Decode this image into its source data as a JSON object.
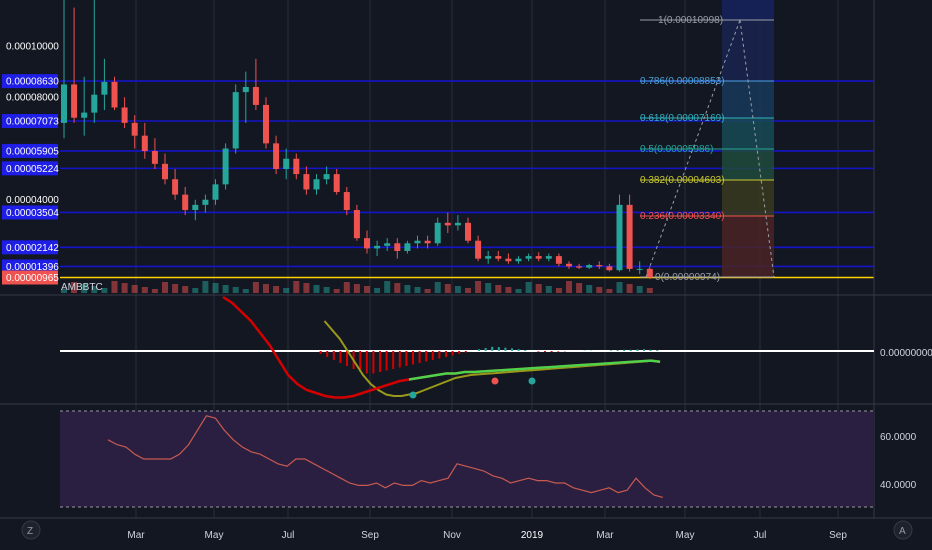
{
  "symbol": "AMBBTC",
  "corner": {
    "left": "Z",
    "right": "A"
  },
  "colors": {
    "background": "#131722",
    "grid": "#2a2e39",
    "up": "#26a69a",
    "down": "#ef5350",
    "level_line": "#1414c8",
    "level_label_bg": "#1e1ee6",
    "current_line": "#ffd400",
    "current_label_bg": "#ef5350",
    "macd_red": "#d40000",
    "macd_olive": "#9a9a1a",
    "macd_green": "#4cd44c",
    "rsi_line": "#c85a50",
    "rsi_band": "#2a1f40",
    "zero_line": "#ffffff"
  },
  "price_axis": {
    "labels": [
      "0.00010000",
      "0.00008630",
      "0.00008000",
      "0.00007073",
      "0.00005905",
      "0.00005224",
      "0.00004000",
      "0.00003504",
      "0.00002142",
      "0.00001396",
      "0.00000965"
    ],
    "highlighted": [
      "0.00008630",
      "0.00007073",
      "0.00005905",
      "0.00005224",
      "0.00003504",
      "0.00002142",
      "0.00001396"
    ],
    "current": "0.00000965"
  },
  "chart_data": [
    {
      "type": "candlestick",
      "symbol": "AMBBTC",
      "x_ticks": [
        "Mar",
        "May",
        "Jul",
        "Sep",
        "Nov",
        "2019",
        "Mar",
        "May",
        "Jul",
        "Sep"
      ],
      "ylim": [
        6.3e-06,
        0.0001225
      ],
      "horizontal_levels": [
        8.63e-05,
        7.073e-05,
        5.905e-05,
        5.224e-05,
        3.504e-05,
        2.142e-05,
        1.396e-05
      ],
      "current_price": 9.65e-06,
      "ohlc": [
        [
          7e-05,
          0.00012,
          6.4e-05,
          8.5e-05
        ],
        [
          8.5e-05,
          0.000115,
          7e-05,
          7.2e-05
        ],
        [
          7.2e-05,
          8.8e-05,
          6.5e-05,
          7.4e-05
        ],
        [
          7.4e-05,
          0.000125,
          7e-05,
          8.1e-05
        ],
        [
          8.1e-05,
          9.5e-05,
          7.5e-05,
          8.6e-05
        ],
        [
          8.6e-05,
          8.8e-05,
          7.5e-05,
          7.6e-05
        ],
        [
          7.6e-05,
          8e-05,
          6.8e-05,
          7e-05
        ],
        [
          7e-05,
          7.3e-05,
          6e-05,
          6.5e-05
        ],
        [
          6.5e-05,
          7e-05,
          5.6e-05,
          5.9e-05
        ],
        [
          5.9e-05,
          6.4e-05,
          5.2e-05,
          5.4e-05
        ],
        [
          5.4e-05,
          5.8e-05,
          4.6e-05,
          4.8e-05
        ],
        [
          4.8e-05,
          5.2e-05,
          4e-05,
          4.2e-05
        ],
        [
          4.2e-05,
          4.5e-05,
          3.4e-05,
          3.6e-05
        ],
        [
          3.6e-05,
          4e-05,
          3.2e-05,
          3.8e-05
        ],
        [
          3.8e-05,
          4.2e-05,
          3.5e-05,
          4e-05
        ],
        [
          4e-05,
          4.8e-05,
          3.8e-05,
          4.6e-05
        ],
        [
          4.6e-05,
          6.2e-05,
          4.4e-05,
          6e-05
        ],
        [
          6e-05,
          8.5e-05,
          5.8e-05,
          8.2e-05
        ],
        [
          8.2e-05,
          9e-05,
          7e-05,
          8.4e-05
        ],
        [
          8.4e-05,
          9.5e-05,
          7.5e-05,
          7.7e-05
        ],
        [
          7.7e-05,
          8e-05,
          6e-05,
          6.2e-05
        ],
        [
          6.2e-05,
          6.5e-05,
          5e-05,
          5.2e-05
        ],
        [
          5.2e-05,
          6e-05,
          4.8e-05,
          5.6e-05
        ],
        [
          5.6e-05,
          5.8e-05,
          4.8e-05,
          5e-05
        ],
        [
          5e-05,
          5.3e-05,
          4.2e-05,
          4.4e-05
        ],
        [
          4.4e-05,
          5e-05,
          4.2e-05,
          4.8e-05
        ],
        [
          4.8e-05,
          5.3e-05,
          4.6e-05,
          5e-05
        ],
        [
          5e-05,
          5.2e-05,
          4.2e-05,
          4.3e-05
        ],
        [
          4.3e-05,
          4.5e-05,
          3.4e-05,
          3.6e-05
        ],
        [
          3.6e-05,
          3.8e-05,
          2.4e-05,
          2.5e-05
        ],
        [
          2.5e-05,
          2.8e-05,
          1.9e-05,
          2.1e-05
        ],
        [
          2.1e-05,
          2.4e-05,
          1.8e-05,
          2.2e-05
        ],
        [
          2.2e-05,
          2.5e-05,
          2e-05,
          2.3e-05
        ],
        [
          2.3e-05,
          2.5e-05,
          1.7e-05,
          2e-05
        ],
        [
          2e-05,
          2.4e-05,
          1.9e-05,
          2.3e-05
        ],
        [
          2.3e-05,
          2.6e-05,
          2.1e-05,
          2.4e-05
        ],
        [
          2.4e-05,
          2.6e-05,
          2.1e-05,
          2.3e-05
        ],
        [
          2.3e-05,
          3.3e-05,
          2.2e-05,
          3.1e-05
        ],
        [
          3.1e-05,
          3.5e-05,
          2.7e-05,
          3e-05
        ],
        [
          3e-05,
          3.4e-05,
          2.8e-05,
          3.1e-05
        ],
        [
          3.1e-05,
          3.3e-05,
          2.3e-05,
          2.4e-05
        ],
        [
          2.4e-05,
          2.6e-05,
          1.6e-05,
          1.7e-05
        ],
        [
          1.7e-05,
          2e-05,
          1.5e-05,
          1.8e-05
        ],
        [
          1.8e-05,
          2e-05,
          1.6e-05,
          1.7e-05
        ],
        [
          1.7e-05,
          1.9e-05,
          1.5e-05,
          1.6e-05
        ],
        [
          1.6e-05,
          1.8e-05,
          1.5e-05,
          1.7e-05
        ],
        [
          1.7e-05,
          1.9e-05,
          1.6e-05,
          1.8e-05
        ],
        [
          1.8e-05,
          1.95e-05,
          1.6e-05,
          1.7e-05
        ],
        [
          1.7e-05,
          1.9e-05,
          1.6e-05,
          1.8e-05
        ],
        [
          1.8e-05,
          1.9e-05,
          1.4e-05,
          1.5e-05
        ],
        [
          1.5e-05,
          1.6e-05,
          1.3e-05,
          1.4e-05
        ],
        [
          1.4e-05,
          1.5e-05,
          1.3e-05,
          1.35e-05
        ],
        [
          1.35e-05,
          1.5e-05,
          1.3e-05,
          1.45e-05
        ],
        [
          1.45e-05,
          1.6e-05,
          1.3e-05,
          1.4e-05
        ],
        [
          1.4e-05,
          1.5e-05,
          1.2e-05,
          1.25e-05
        ],
        [
          1.25e-05,
          4.2e-05,
          1.2e-05,
          3.8e-05
        ],
        [
          3.8e-05,
          4.2e-05,
          1.2e-05,
          1.3e-05
        ],
        [
          1.3e-05,
          1.6e-05,
          1.1e-05,
          1.3e-05
        ],
        [
          1.3e-05,
          1.4e-05,
          9e-06,
          9.7e-06
        ]
      ]
    },
    {
      "type": "fibonacci_retracement",
      "levels": [
        {
          "ratio_label": "1",
          "price_label": "0.00010998",
          "color": "#9a9ea8"
        },
        {
          "ratio_label": "0.786",
          "price_label": "0.00008853",
          "color": "#4aa0d8"
        },
        {
          "ratio_label": "0.618",
          "price_label": "0.00007169",
          "color": "#30b0c0"
        },
        {
          "ratio_label": "0.5",
          "price_label": "0.00005986",
          "color": "#26a69a"
        },
        {
          "ratio_label": "0.382",
          "price_label": "0.00004603",
          "color": "#c8c830"
        },
        {
          "ratio_label": "0.236",
          "price_label": "0.00003340",
          "color": "#ef5350"
        },
        {
          "ratio_label": "0",
          "price_label": "0.00000974",
          "color": "#9a9ea8"
        }
      ]
    },
    {
      "type": "line",
      "indicator": "MACD",
      "y_tick": "0.00000000",
      "histogram": [
        0,
        0,
        0,
        0,
        0,
        0,
        -1,
        -2,
        -3,
        -4,
        -5,
        -6,
        -7,
        -7.5,
        -7.5,
        -7,
        -6.5,
        -6,
        -5.5,
        -5,
        -4.5,
        -4,
        -3.5,
        -3,
        -2.5,
        -2,
        -1.5,
        -1,
        -0.5,
        0,
        0.6,
        1,
        1.4,
        1.3,
        1.1,
        0.9,
        0.6,
        0.3,
        0,
        -0.2,
        -0.3,
        -0.3,
        -0.2,
        -0.1,
        0,
        0,
        0.1,
        0.1,
        0,
        0,
        0.2,
        0.3,
        0.4,
        0.4,
        0.5,
        0.6,
        0.4,
        0.3
      ],
      "macd_line": [
        null,
        null,
        null,
        null,
        null,
        null,
        null,
        null,
        null,
        null,
        18,
        16,
        13,
        10,
        6,
        2,
        -3,
        -8,
        -11,
        -13,
        -14,
        -15,
        -15.5,
        -15.5,
        -15,
        -14,
        -13,
        -12,
        -11,
        -10,
        -9.5,
        -9,
        -8.5,
        -8,
        -7.5,
        -7.5,
        -7,
        -7,
        -6.8,
        -6.6,
        -6.4,
        -6.2,
        -6,
        -5.8,
        -5.6,
        -5.4,
        -5.2,
        -5,
        -4.8,
        -4.6,
        -4.4,
        -4.2,
        -4,
        -3.8,
        -3.6,
        -3.4,
        -3.2,
        -3.6
      ],
      "signal_line": [
        null,
        null,
        null,
        null,
        null,
        null,
        null,
        null,
        null,
        null,
        null,
        null,
        null,
        null,
        null,
        10,
        7,
        4,
        0,
        -4,
        -8,
        -11,
        -13,
        -14.5,
        -15,
        -15,
        -14.5,
        -14,
        -13,
        -12,
        -11,
        -10,
        -9,
        -8.5,
        -8,
        -7.8,
        -7.6,
        -7.4,
        -7.2,
        -7,
        -6.8,
        -6.6,
        -6.4,
        -6.2,
        -6,
        -5.8,
        -5.6,
        -5.4,
        -5.2,
        -5,
        -4.8,
        -4.6,
        -4.4,
        -4.2,
        -4,
        -3.8,
        -3.6,
        -3.4
      ]
    },
    {
      "type": "line",
      "indicator": "RSI",
      "y_ticks": [
        "60.0000",
        "40.0000"
      ],
      "ylim": [
        27,
        73
      ],
      "band": [
        30,
        70
      ],
      "values": [
        58,
        56,
        55,
        52,
        50,
        50,
        50,
        50,
        52,
        56,
        62,
        68,
        67,
        62,
        58,
        55,
        53,
        52,
        50,
        48,
        47,
        50,
        50,
        48,
        46,
        44,
        42,
        40,
        39,
        39,
        40,
        38,
        40,
        39,
        39,
        41,
        40,
        41,
        42,
        48,
        47,
        46,
        45,
        43,
        42,
        40,
        41,
        42,
        41,
        41,
        40,
        40,
        38,
        37,
        36,
        37,
        38,
        36,
        37,
        42,
        38,
        35,
        34
      ]
    }
  ]
}
